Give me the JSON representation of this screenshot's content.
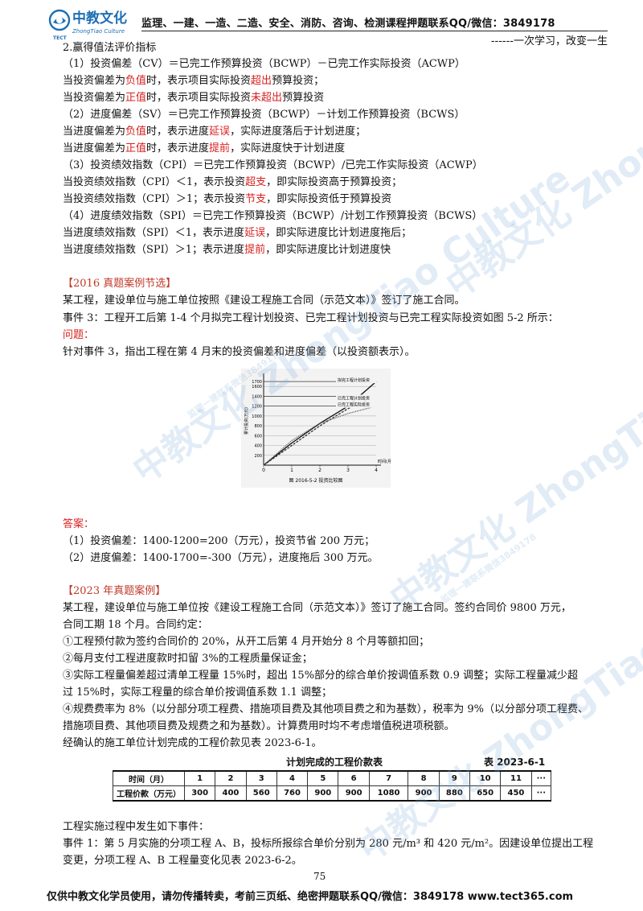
{
  "header": {
    "logo_cn": "中教文化",
    "logo_en": "ZhongTiao Culture",
    "logo_abbr": "TECT",
    "title": "监理、一建、一造、二造、安全、消防、咨询、检测课程押题联系QQ/微信：3849178",
    "motto": "------一次学习，改变一生"
  },
  "section_eval": {
    "heading": "2.赢得值法评价指标",
    "cv_def": "（1）投资偏差（CV）＝已完工作预算投资（BCWP）－已完工作实际投资（ACWP）",
    "cv_neg": [
      "当投资偏差为",
      "负值",
      "时，表示项目实际投资",
      "超出",
      "预算投资；"
    ],
    "cv_pos": [
      "当投资偏差为",
      "正值",
      "时，表示项目实际投资",
      "未超出",
      "预算投资"
    ],
    "sv_def": "（2）进度偏差（SV）＝已完工作预算投资（BCWP）－计划工作预算投资（BCWS）",
    "sv_neg": [
      "当进度偏差为",
      "负值",
      "时，表示进度",
      "延误",
      "，实际进度落后于计划进度；"
    ],
    "sv_pos": [
      "当进度偏差为",
      "正值",
      "时，表示进度",
      "提前",
      "，实际进度快于计划进度"
    ],
    "cpi_def": "（3）投资绩效指数（CPI）＝已完工作预算投资（BCWP）/已完工作实际投资（ACWP）",
    "cpi_lt": [
      "当投资绩效指数（CPI）＜1，表示投资",
      "超支",
      "，即实际投资高于预算投资；"
    ],
    "cpi_gt": [
      "当投资绩效指数（CPI）＞1；表示投资",
      "节支",
      "，即实际投资低于预算投资"
    ],
    "spi_def": "（4）进度绩效指数（SPI）＝已完工作预算投资（BCWP）/计划工作预算投资（BCWS）",
    "spi_lt": [
      "当进度绩效指数（SPI）＜1，表示进度",
      "延误",
      "，即实际进度比计划进度拖后；"
    ],
    "spi_gt": [
      "当进度绩效指数（SPI）＞1；表示进度",
      "提前",
      "，即实际进度比计划进度快"
    ]
  },
  "case2016": {
    "heading": "【2016 真题案例节选】",
    "p1": "某工程，建设单位与施工单位按照《建设工程施工合同（示范文本）》签订了施工合同。",
    "p2": "事件 3：工程开工后第 1-4 个月拟完工程计划投资、已完工程计划投资与已完工程实际投资如图 5-2 所示：",
    "q_label": "问题：",
    "q": "针对事件 3，指出工程在第 4 月末的投资偏差和进度偏差（以投资额表示）。",
    "ans_label": "答案：",
    "a1": "（1）投资偏差：1400-1200=200（万元），投资节省 200 万元；",
    "a2": "（2）进度偏差：1400-1700=-300（万元），进度拖后 300 万元。"
  },
  "chart_data": {
    "type": "line",
    "title": "图 2016-5-2  投资比较图",
    "xlabel": "时间(月)",
    "ylabel": "累计投资(万元)",
    "x_ticks": [
      0,
      1,
      2,
      3,
      4
    ],
    "y_ticks": [
      200,
      400,
      600,
      800,
      1000,
      1200,
      1400,
      1600,
      1700
    ],
    "xlim": [
      0,
      4
    ],
    "ylim": [
      0,
      1800
    ],
    "series": [
      {
        "name": "拟完工程计划投资",
        "x": [
          0,
          1,
          2,
          3,
          4
        ],
        "values": [
          0,
          450,
          850,
          1200,
          1700
        ]
      },
      {
        "name": "已完工程计划投资",
        "x": [
          0,
          1,
          2,
          3,
          4
        ],
        "values": [
          0,
          400,
          800,
          1150,
          1400
        ]
      },
      {
        "name": "已完工程实际投资",
        "x": [
          0,
          1,
          2,
          3,
          4
        ],
        "values": [
          0,
          500,
          850,
          1050,
          1200
        ]
      }
    ]
  },
  "case2023": {
    "heading": "【2023 年真题案例】",
    "p1a": "某工程，建设单位与施工单位按《建设工程施工合同（示范文本）》签订了施工合同。签约合同价 9800 万元，",
    "p1b": "合同工期 18 个月。合同约定：",
    "c1": "①工程预付款为签约合同价的 20%，从开工后第 4 月开始分 8 个月等额扣回；",
    "c2": "②每月支付工程进度款时扣留 3%的工程质量保证金；",
    "c3a": "③实际工程量偏差超过清单工程量 15%时，超出 15%部分的综合单价按调值系数 0.9 调整；实际工程量减少超",
    "c3b": "过 15%时，实际工程量的综合单价按调值系数 1.1 调整；",
    "c4a": "④规费费率为 8%（以分部分项工程费、措施项目费及其他项目费之和为基数），税率为 9%（以分部分项工程费、",
    "c4b": "措施项目费、其他项目费及规费之和为基数）。计算费用时均不考虑增值税进项税额。",
    "p2": "经确认的施工单位计划完成的工程价款见表 2023-6-1。",
    "table_title": "计划完成的工程价款表",
    "table_no": "表 2023-6-1",
    "row1_label": "时间（月）",
    "row2_label": "工程价款（万元）",
    "months": [
      "1",
      "2",
      "3",
      "4",
      "5",
      "6",
      "7",
      "8",
      "9",
      "10",
      "11",
      "···"
    ],
    "amounts": [
      "300",
      "400",
      "560",
      "760",
      "900",
      "900",
      "1080",
      "900",
      "880",
      "650",
      "450",
      "···"
    ],
    "p3": "工程实施过程中发生如下事件：",
    "p4a": "事件 1：第 5 月实施的分项工程 A、B，投标所报综合单价分别为 280 元/m³ 和 420 元/m²。因建设单位提出工程",
    "p4b": "变更，分项工程 A、B 工程量变化见表 2023-6-2。"
  },
  "page_number": "75",
  "footer": "仅供中教文化学员使用，请勿传播转卖，考前三页纸、绝密押题联系QQ/微信：3849178 www.tect365.com",
  "watermark": "中教文化 ZhongTiao Culture",
  "watermark_qq": "监理一建联系微信3849178"
}
